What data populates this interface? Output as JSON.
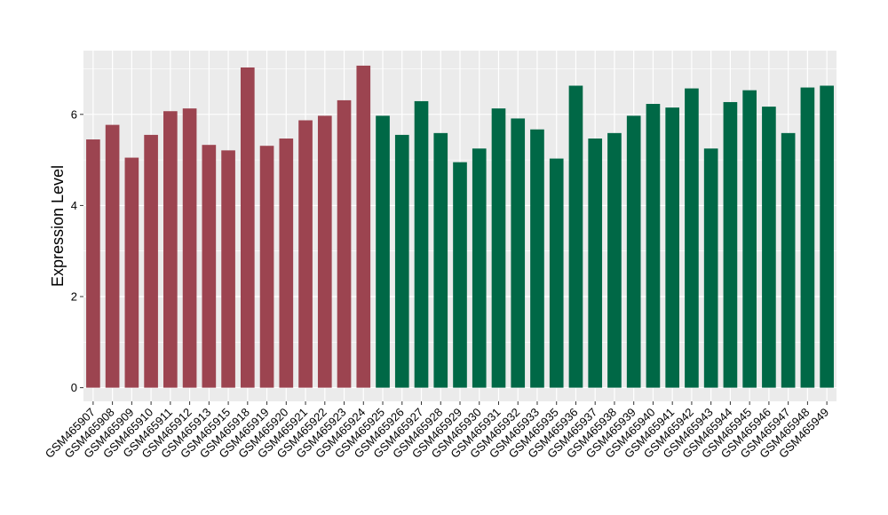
{
  "chart_data": {
    "type": "bar",
    "title": "",
    "xlabel": "",
    "ylabel": "Expression Level",
    "ylim": [
      -0.3,
      7.4
    ],
    "yticks": [
      0,
      2,
      4,
      6
    ],
    "grid": true,
    "legend": "none",
    "colors": {
      "group_a": "#9C4450",
      "group_b": "#006846",
      "panel_bg": "#EBEBEB",
      "grid": "#FFFFFF"
    },
    "categories": [
      "GSM465907",
      "GSM465908",
      "GSM465909",
      "GSM465910",
      "GSM465911",
      "GSM465912",
      "GSM465913",
      "GSM465915",
      "GSM465918",
      "GSM465919",
      "GSM465920",
      "GSM465921",
      "GSM465922",
      "GSM465923",
      "GSM465924",
      "GSM465925",
      "GSM465926",
      "GSM465927",
      "GSM465928",
      "GSM465929",
      "GSM465930",
      "GSM465931",
      "GSM465932",
      "GSM465933",
      "GSM465935",
      "GSM465936",
      "GSM465937",
      "GSM465938",
      "GSM465939",
      "GSM465940",
      "GSM465941",
      "GSM465942",
      "GSM465943",
      "GSM465944",
      "GSM465945",
      "GSM465946",
      "GSM465947",
      "GSM465948",
      "GSM465949"
    ],
    "values": [
      5.45,
      5.77,
      5.05,
      5.55,
      6.07,
      6.13,
      5.33,
      5.21,
      7.03,
      5.31,
      5.47,
      5.87,
      5.97,
      6.31,
      7.07,
      5.97,
      5.55,
      6.29,
      5.59,
      4.95,
      5.25,
      6.13,
      5.91,
      5.67,
      5.03,
      6.63,
      5.47,
      5.59,
      5.97,
      6.23,
      6.15,
      6.57,
      5.25,
      6.27,
      6.53,
      6.17,
      5.59,
      6.59,
      6.63
    ],
    "groups": [
      "a",
      "a",
      "a",
      "a",
      "a",
      "a",
      "a",
      "a",
      "a",
      "a",
      "a",
      "a",
      "a",
      "a",
      "a",
      "b",
      "b",
      "b",
      "b",
      "b",
      "b",
      "b",
      "b",
      "b",
      "b",
      "b",
      "b",
      "b",
      "b",
      "b",
      "b",
      "b",
      "b",
      "b",
      "b",
      "b",
      "b",
      "b",
      "b"
    ]
  }
}
